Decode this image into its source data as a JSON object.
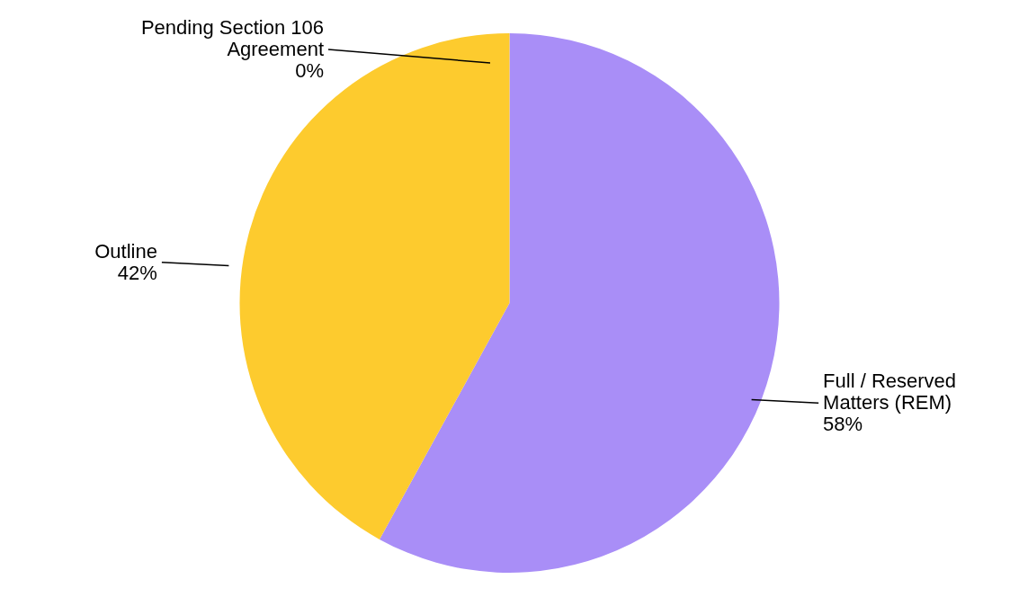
{
  "chart_data": {
    "type": "pie",
    "categories": [
      "Full / Reserved Matters (REM)",
      "Outline",
      "Pending Section 106 Agreement"
    ],
    "values": [
      58,
      42,
      0
    ],
    "colors": [
      "#a98ef7",
      "#fdcb2e",
      "#7f7f7f"
    ],
    "value_labels": [
      "58%",
      "42%",
      "0%"
    ]
  }
}
